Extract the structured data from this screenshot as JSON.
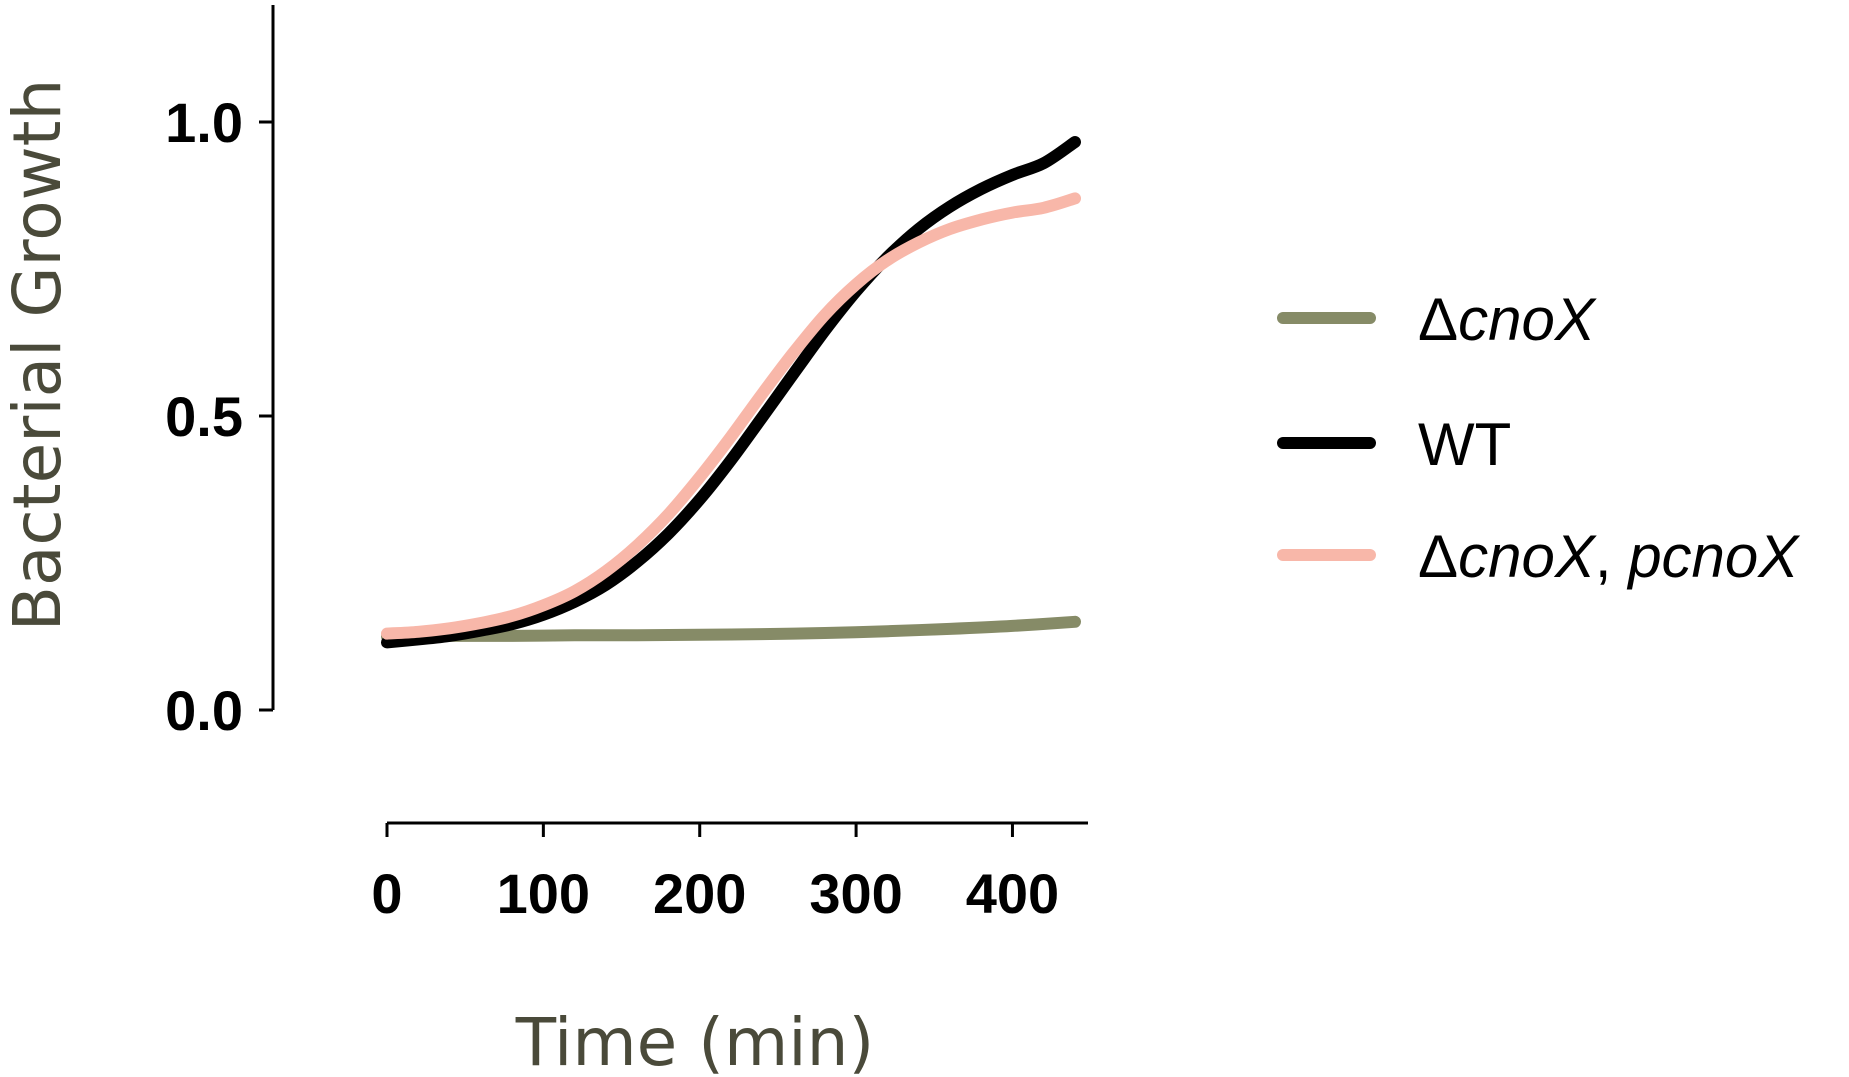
{
  "chart_data": {
    "type": "line",
    "xlabel": "Time (min)",
    "ylabel": "Bacterial Growth",
    "xlim": [
      0,
      440
    ],
    "ylim": [
      0.0,
      1.2
    ],
    "x_ticks": [
      0,
      100,
      200,
      300,
      400
    ],
    "x_tick_labels": [
      "0",
      "100",
      "200",
      "300",
      "400"
    ],
    "y_ticks": [
      0.0,
      0.5,
      1.0
    ],
    "y_tick_labels": [
      "0.0",
      "0.5",
      "1.0"
    ],
    "grid": false,
    "legend_position": "right",
    "series": [
      {
        "name": "ΔcnoX",
        "name_prefix": "Δ",
        "name_italic": "cnoX",
        "name_italic2": "",
        "color": "#868b67",
        "x": [
          0,
          40,
          80,
          120,
          160,
          200,
          240,
          280,
          320,
          360,
          400,
          440
        ],
        "y": [
          0.125,
          0.126,
          0.126,
          0.127,
          0.127,
          0.128,
          0.129,
          0.131,
          0.134,
          0.138,
          0.143,
          0.15
        ]
      },
      {
        "name": "WT",
        "name_prefix": "WT",
        "name_italic": "",
        "name_italic2": "",
        "color": "#000000",
        "x": [
          0,
          20,
          40,
          60,
          80,
          100,
          120,
          140,
          160,
          180,
          200,
          220,
          240,
          260,
          280,
          300,
          320,
          340,
          360,
          380,
          400,
          420,
          440
        ],
        "y": [
          0.115,
          0.12,
          0.126,
          0.135,
          0.146,
          0.162,
          0.184,
          0.213,
          0.252,
          0.3,
          0.358,
          0.425,
          0.498,
          0.572,
          0.645,
          0.712,
          0.77,
          0.818,
          0.856,
          0.886,
          0.91,
          0.93,
          0.966
        ]
      },
      {
        "name": "ΔcnoX, pcnoX",
        "name_prefix": "Δ",
        "name_italic": "cnoX",
        "name_italic2": "pcnoX",
        "color": "#f8b7a9",
        "x": [
          0,
          20,
          40,
          60,
          80,
          100,
          120,
          140,
          160,
          180,
          200,
          220,
          240,
          260,
          280,
          300,
          320,
          340,
          360,
          380,
          400,
          420,
          440
        ],
        "y": [
          0.13,
          0.133,
          0.139,
          0.148,
          0.16,
          0.178,
          0.202,
          0.236,
          0.28,
          0.333,
          0.396,
          0.465,
          0.538,
          0.608,
          0.672,
          0.724,
          0.765,
          0.795,
          0.818,
          0.834,
          0.846,
          0.854,
          0.87
        ]
      }
    ]
  }
}
